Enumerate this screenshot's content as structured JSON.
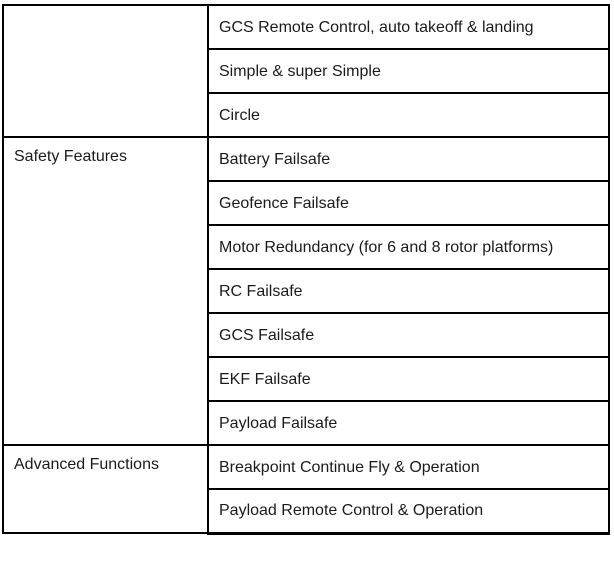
{
  "table": {
    "groups": [
      {
        "label": "",
        "features": [
          "GCS Remote Control, auto takeoff & landing",
          "Simple & super Simple",
          "Circle"
        ]
      },
      {
        "label": "Safety Features",
        "features": [
          "Battery Failsafe",
          "Geofence Failsafe",
          "Motor Redundancy (for 6 and 8 rotor platforms)",
          "RC Failsafe",
          "GCS Failsafe",
          "EKF Failsafe",
          "Payload Failsafe"
        ]
      },
      {
        "label": "Advanced Functions",
        "features": [
          "Breakpoint Continue Fly & Operation",
          "Payload Remote Control & Operation"
        ]
      }
    ],
    "colors": {
      "border": "#000000",
      "text": "#1b1b1b",
      "background": "#ffffff"
    }
  }
}
